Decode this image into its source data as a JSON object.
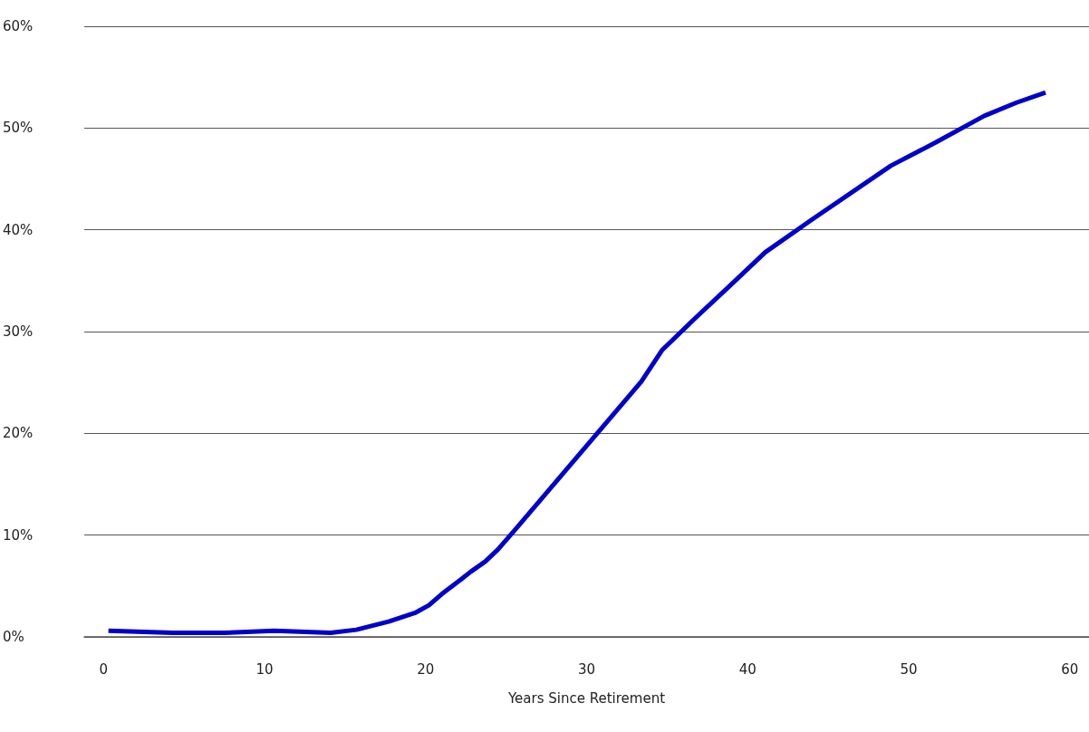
{
  "chart_data": {
    "type": "line",
    "xlabel": "Years Since Retirement",
    "x": [
      0.3,
      4.3,
      7.5,
      10.6,
      14.1,
      15.7,
      16.7,
      17.7,
      19.4,
      20.2,
      21.0,
      22.0,
      22.8,
      23.7,
      24.5,
      25.6,
      33.4,
      34.7,
      36.8,
      38.9,
      41.1,
      43.9,
      48.9,
      51.7,
      54.7,
      56.7,
      58.5
    ],
    "series": [
      {
        "color": "#0000cc",
        "values": [
          0.6,
          0.4,
          0.4,
          0.6,
          0.4,
          0.7,
          1.1,
          1.5,
          2.4,
          3.1,
          4.2,
          5.4,
          6.4,
          7.4,
          8.6,
          10.6,
          25.1,
          28.2,
          31.4,
          34.5,
          37.8,
          40.9,
          46.3,
          48.6,
          51.2,
          52.5,
          53.5
        ]
      }
    ],
    "xlim": [
      -1.2,
      61.2
    ],
    "xticks": [
      0,
      10,
      20,
      30,
      40,
      50,
      60
    ],
    "ylim": [
      0,
      60
    ],
    "yticks": [
      {
        "value": 0,
        "label": "0%"
      },
      {
        "value": 10,
        "label": "10%"
      },
      {
        "value": 20,
        "label": "20%"
      },
      {
        "value": 30,
        "label": "30%"
      },
      {
        "value": 40,
        "label": "40%"
      },
      {
        "value": 50,
        "label": "50%"
      },
      {
        "value": 60,
        "label": "60%"
      }
    ],
    "grid": "y",
    "marker": "none",
    "line_style": "solid"
  }
}
